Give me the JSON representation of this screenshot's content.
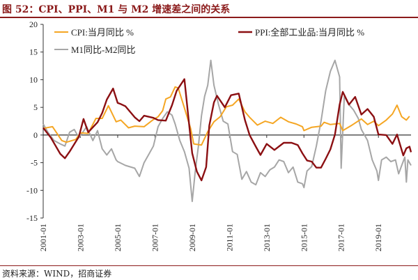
{
  "figure": {
    "title": "图 52：CPI、PPI、M1 与 M2 增速差之间的关系",
    "source": "资料来源：WIND，招商证券"
  },
  "colors": {
    "cpi": "#f5a623",
    "ppi": "#8b0f12",
    "m1m2": "#a6a6a6",
    "title": "#8b1a1a",
    "axis": "#333333"
  },
  "chart_data": {
    "type": "line",
    "title": "",
    "xlabel": "",
    "ylabel": "",
    "ylim": [
      -15,
      20
    ],
    "yticks": [
      -15,
      -10,
      -5,
      0,
      5,
      10,
      15,
      20
    ],
    "xlim": [
      "2001-01",
      "2020-10"
    ],
    "xticks": [
      "2001-01",
      "2003-01",
      "2005-01",
      "2007-01",
      "2009-01",
      "2011-01",
      "2013-01",
      "2015-01",
      "2017-01",
      "2019-01"
    ],
    "grid": false,
    "legend_position": "top",
    "series": [
      {
        "name": "CPI:当月同比 %",
        "color": "#f5a623",
        "points": [
          [
            "2001-01",
            1.2
          ],
          [
            "2001-07",
            1.5
          ],
          [
            "2002-01",
            -1.0
          ],
          [
            "2002-04",
            -1.3
          ],
          [
            "2002-10",
            -0.8
          ],
          [
            "2003-01",
            0.4
          ],
          [
            "2003-06",
            0.3
          ],
          [
            "2003-11",
            3.0
          ],
          [
            "2004-03",
            3.0
          ],
          [
            "2004-07",
            5.3
          ],
          [
            "2004-12",
            2.4
          ],
          [
            "2005-03",
            2.7
          ],
          [
            "2005-08",
            1.3
          ],
          [
            "2005-12",
            1.6
          ],
          [
            "2006-06",
            1.5
          ],
          [
            "2006-12",
            2.8
          ],
          [
            "2007-03",
            3.3
          ],
          [
            "2007-06",
            4.4
          ],
          [
            "2007-08",
            6.5
          ],
          [
            "2007-11",
            6.9
          ],
          [
            "2008-02",
            8.7
          ],
          [
            "2008-04",
            8.5
          ],
          [
            "2008-08",
            4.9
          ],
          [
            "2008-12",
            1.2
          ],
          [
            "2009-02",
            -1.6
          ],
          [
            "2009-07",
            -1.8
          ],
          [
            "2009-11",
            0.6
          ],
          [
            "2010-03",
            2.4
          ],
          [
            "2010-07",
            3.3
          ],
          [
            "2010-11",
            5.1
          ],
          [
            "2011-03",
            5.4
          ],
          [
            "2011-07",
            6.5
          ],
          [
            "2011-11",
            4.2
          ],
          [
            "2012-02",
            3.2
          ],
          [
            "2012-07",
            1.8
          ],
          [
            "2012-12",
            2.5
          ],
          [
            "2013-05",
            2.1
          ],
          [
            "2013-10",
            3.2
          ],
          [
            "2014-03",
            2.4
          ],
          [
            "2014-08",
            2.0
          ],
          [
            "2014-12",
            1.5
          ],
          [
            "2015-01",
            0.8
          ],
          [
            "2015-06",
            1.4
          ],
          [
            "2015-12",
            1.6
          ],
          [
            "2016-02",
            2.3
          ],
          [
            "2016-06",
            1.9
          ],
          [
            "2016-12",
            2.1
          ],
          [
            "2017-02",
            0.8
          ],
          [
            "2017-08",
            1.8
          ],
          [
            "2018-02",
            2.9
          ],
          [
            "2018-06",
            1.9
          ],
          [
            "2018-10",
            2.5
          ],
          [
            "2019-01",
            1.7
          ],
          [
            "2019-06",
            2.7
          ],
          [
            "2019-10",
            3.8
          ],
          [
            "2020-01",
            5.4
          ],
          [
            "2020-04",
            3.3
          ],
          [
            "2020-07",
            2.7
          ],
          [
            "2020-09",
            3.4
          ]
        ]
      },
      {
        "name": "PPI:全部工业品:当月同比 %",
        "color": "#8b0f12",
        "points": [
          [
            "2001-01",
            1.3
          ],
          [
            "2001-06",
            -0.5
          ],
          [
            "2001-12",
            -3.4
          ],
          [
            "2002-03",
            -4.2
          ],
          [
            "2002-06",
            -3.0
          ],
          [
            "2002-12",
            -0.3
          ],
          [
            "2003-03",
            2.9
          ],
          [
            "2003-06",
            0.5
          ],
          [
            "2003-12",
            2.3
          ],
          [
            "2004-03",
            4.0
          ],
          [
            "2004-06",
            6.4
          ],
          [
            "2004-10",
            8.4
          ],
          [
            "2005-01",
            5.8
          ],
          [
            "2005-03",
            5.6
          ],
          [
            "2005-06",
            5.2
          ],
          [
            "2005-12",
            3.2
          ],
          [
            "2006-03",
            2.5
          ],
          [
            "2006-06",
            3.5
          ],
          [
            "2006-12",
            3.1
          ],
          [
            "2007-03",
            2.7
          ],
          [
            "2007-08",
            2.6
          ],
          [
            "2007-12",
            5.4
          ],
          [
            "2008-03",
            8.0
          ],
          [
            "2008-08",
            10.1
          ],
          [
            "2008-11",
            2.0
          ],
          [
            "2009-01",
            -3.3
          ],
          [
            "2009-04",
            -6.6
          ],
          [
            "2009-07",
            -8.2
          ],
          [
            "2009-10",
            -5.8
          ],
          [
            "2009-12",
            1.7
          ],
          [
            "2010-03",
            5.9
          ],
          [
            "2010-05",
            7.1
          ],
          [
            "2010-10",
            5.0
          ],
          [
            "2011-02",
            7.2
          ],
          [
            "2011-07",
            7.5
          ],
          [
            "2011-11",
            2.7
          ],
          [
            "2012-02",
            0.0
          ],
          [
            "2012-06",
            -2.1
          ],
          [
            "2012-09",
            -3.6
          ],
          [
            "2013-01",
            -1.6
          ],
          [
            "2013-06",
            -2.7
          ],
          [
            "2013-12",
            -1.4
          ],
          [
            "2014-05",
            -1.4
          ],
          [
            "2014-09",
            -1.8
          ],
          [
            "2014-12",
            -3.3
          ],
          [
            "2015-03",
            -4.6
          ],
          [
            "2015-06",
            -4.8
          ],
          [
            "2015-09",
            -5.9
          ],
          [
            "2015-12",
            -5.9
          ],
          [
            "2016-03",
            -4.3
          ],
          [
            "2016-06",
            -2.6
          ],
          [
            "2016-09",
            0.1
          ],
          [
            "2016-12",
            5.5
          ],
          [
            "2017-02",
            7.8
          ],
          [
            "2017-06",
            5.5
          ],
          [
            "2017-10",
            6.9
          ],
          [
            "2018-02",
            3.7
          ],
          [
            "2018-06",
            4.7
          ],
          [
            "2018-10",
            3.3
          ],
          [
            "2019-01",
            0.1
          ],
          [
            "2019-06",
            0.0
          ],
          [
            "2019-10",
            -1.6
          ],
          [
            "2020-01",
            0.1
          ],
          [
            "2020-05",
            -3.7
          ],
          [
            "2020-07",
            -2.4
          ],
          [
            "2020-09",
            -2.1
          ],
          [
            "2020-10",
            -3.1
          ]
        ]
      },
      {
        "name": "M1同比-M2同比",
        "color": "#a6a6a6",
        "points": [
          [
            "2001-01",
            2.0
          ],
          [
            "2001-04",
            0.5
          ],
          [
            "2001-08",
            -1.0
          ],
          [
            "2001-12",
            -1.6
          ],
          [
            "2002-03",
            -2.0
          ],
          [
            "2002-06",
            0.5
          ],
          [
            "2002-09",
            1.0
          ],
          [
            "2002-12",
            -0.5
          ],
          [
            "2003-02",
            0.3
          ],
          [
            "2003-05",
            1.5
          ],
          [
            "2003-09",
            -1.0
          ],
          [
            "2003-12",
            0.8
          ],
          [
            "2004-03",
            -2.5
          ],
          [
            "2004-06",
            -3.6
          ],
          [
            "2004-09",
            -2.5
          ],
          [
            "2004-12",
            -4.5
          ],
          [
            "2005-01",
            -4.8
          ],
          [
            "2005-06",
            -5.5
          ],
          [
            "2005-12",
            -6.0
          ],
          [
            "2006-03",
            -7.5
          ],
          [
            "2006-06",
            -5.0
          ],
          [
            "2006-09",
            -3.5
          ],
          [
            "2006-12",
            -2.0
          ],
          [
            "2007-03",
            1.5
          ],
          [
            "2007-06",
            3.0
          ],
          [
            "2007-09",
            4.2
          ],
          [
            "2007-12",
            3.6
          ],
          [
            "2008-02",
            2.0
          ],
          [
            "2008-05",
            -1.0
          ],
          [
            "2008-08",
            -3.0
          ],
          [
            "2008-11",
            -6.0
          ],
          [
            "2009-01",
            -12.0
          ],
          [
            "2009-03",
            -6.5
          ],
          [
            "2009-05",
            -2.0
          ],
          [
            "2009-07",
            3.5
          ],
          [
            "2009-09",
            7.0
          ],
          [
            "2009-11",
            9.0
          ],
          [
            "2010-01",
            13.5
          ],
          [
            "2010-03",
            9.0
          ],
          [
            "2010-06",
            5.5
          ],
          [
            "2010-09",
            2.5
          ],
          [
            "2010-12",
            2.0
          ],
          [
            "2011-03",
            -3.0
          ],
          [
            "2011-06",
            -3.5
          ],
          [
            "2011-09",
            -8.0
          ],
          [
            "2011-12",
            -6.6
          ],
          [
            "2012-03",
            -8.5
          ],
          [
            "2012-06",
            -9.0
          ],
          [
            "2012-09",
            -6.8
          ],
          [
            "2012-12",
            -7.5
          ],
          [
            "2013-03",
            -6.3
          ],
          [
            "2013-06",
            -5.8
          ],
          [
            "2013-09",
            -4.5
          ],
          [
            "2013-12",
            -4.8
          ],
          [
            "2014-03",
            -6.8
          ],
          [
            "2014-06",
            -5.8
          ],
          [
            "2014-09",
            -8.5
          ],
          [
            "2014-12",
            -8.8
          ],
          [
            "2015-01",
            -9.5
          ],
          [
            "2015-03",
            -6.5
          ],
          [
            "2015-06",
            -5.7
          ],
          [
            "2015-09",
            -2.0
          ],
          [
            "2015-12",
            2.5
          ],
          [
            "2016-03",
            8.0
          ],
          [
            "2016-06",
            11.5
          ],
          [
            "2016-09",
            13.5
          ],
          [
            "2016-12",
            10.5
          ],
          [
            "2017-01",
            -6.0
          ],
          [
            "2017-03",
            7.0
          ],
          [
            "2017-06",
            5.5
          ],
          [
            "2017-09",
            4.5
          ],
          [
            "2017-12",
            3.0
          ],
          [
            "2018-02",
            1.0
          ],
          [
            "2018-06",
            -1.0
          ],
          [
            "2018-09",
            -4.5
          ],
          [
            "2018-12",
            -6.5
          ],
          [
            "2019-01",
            -8.2
          ],
          [
            "2019-03",
            -4.5
          ],
          [
            "2019-06",
            -4.0
          ],
          [
            "2019-09",
            -4.8
          ],
          [
            "2019-12",
            -4.5
          ],
          [
            "2020-02",
            -7.0
          ],
          [
            "2020-04",
            -5.5
          ],
          [
            "2020-06",
            -4.0
          ],
          [
            "2020-07",
            -8.5
          ],
          [
            "2020-08",
            -4.5
          ],
          [
            "2020-10",
            -5.5
          ]
        ]
      }
    ]
  }
}
